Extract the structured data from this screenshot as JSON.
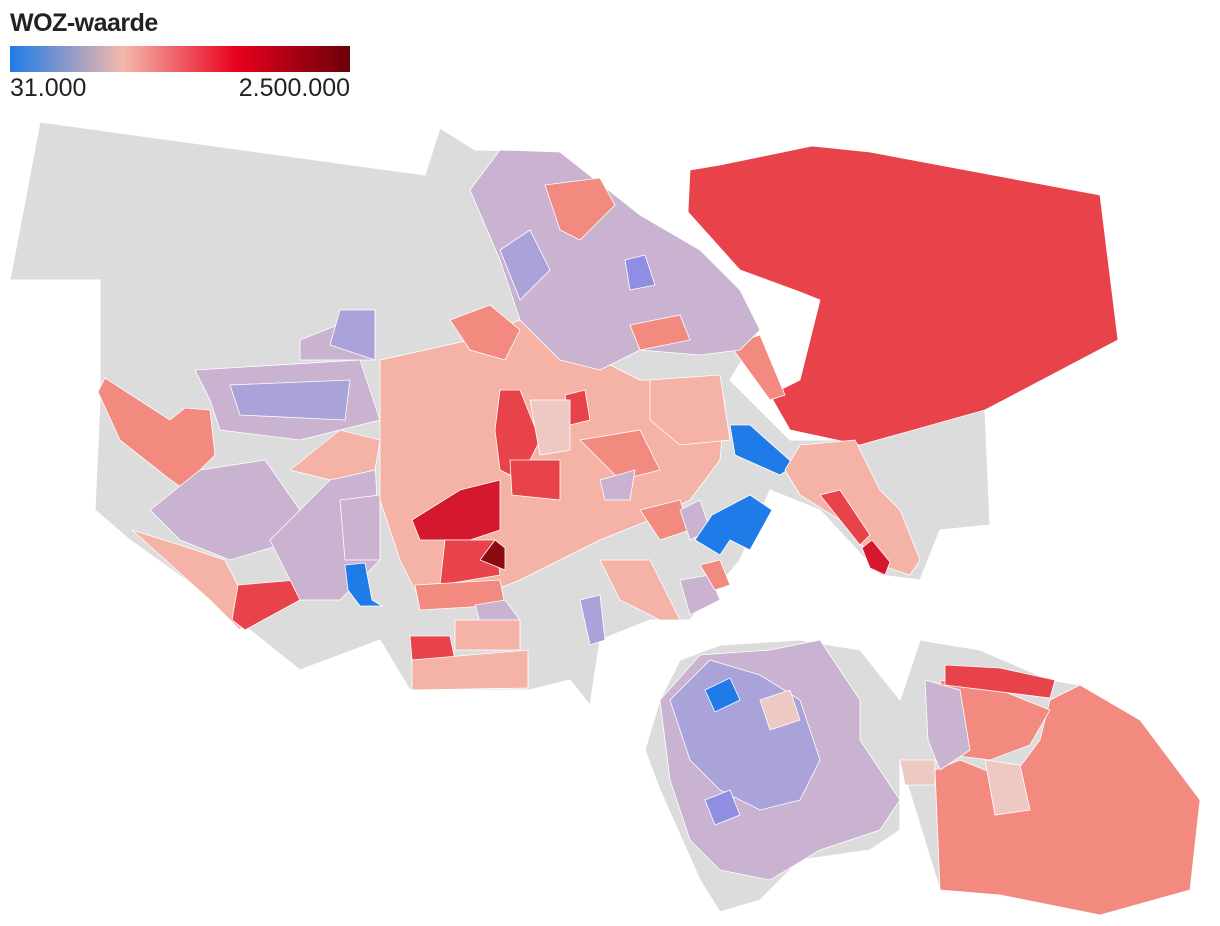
{
  "legend": {
    "title": "WOZ-waarde",
    "min": "31.000",
    "max": "2.500.000",
    "colors": [
      "#1f7be8",
      "#f4b8ab",
      "#e8001e",
      "#6b0008"
    ]
  }
}
